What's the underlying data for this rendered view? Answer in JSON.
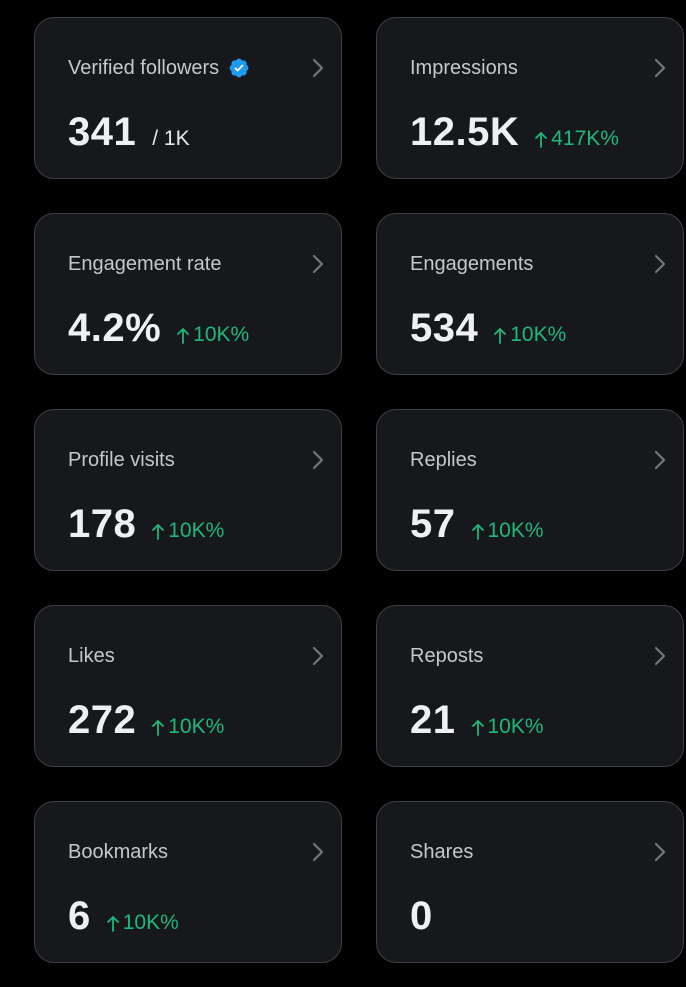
{
  "colors": {
    "background": "#000000",
    "card": "#16181c",
    "card_border": "#3c4046",
    "positive": "#1cb97a",
    "verified": "#1d9bf0"
  },
  "cards": [
    {
      "label": "Verified followers",
      "value": "341",
      "sub": "/ 1K",
      "change": "",
      "verified_icon": "verified-badge-icon"
    },
    {
      "label": "Impressions",
      "value": "12.5K",
      "sub": "",
      "change": "417K%"
    },
    {
      "label": "Engagement rate",
      "value": "4.2%",
      "sub": "",
      "change": "10K%"
    },
    {
      "label": "Engagements",
      "value": "534",
      "sub": "",
      "change": "10K%"
    },
    {
      "label": "Profile visits",
      "value": "178",
      "sub": "",
      "change": "10K%"
    },
    {
      "label": "Replies",
      "value": "57",
      "sub": "",
      "change": "10K%"
    },
    {
      "label": "Likes",
      "value": "272",
      "sub": "",
      "change": "10K%"
    },
    {
      "label": "Reposts",
      "value": "21",
      "sub": "",
      "change": "10K%"
    },
    {
      "label": "Bookmarks",
      "value": "6",
      "sub": "",
      "change": "10K%"
    },
    {
      "label": "Shares",
      "value": "0",
      "sub": "",
      "change": ""
    }
  ]
}
